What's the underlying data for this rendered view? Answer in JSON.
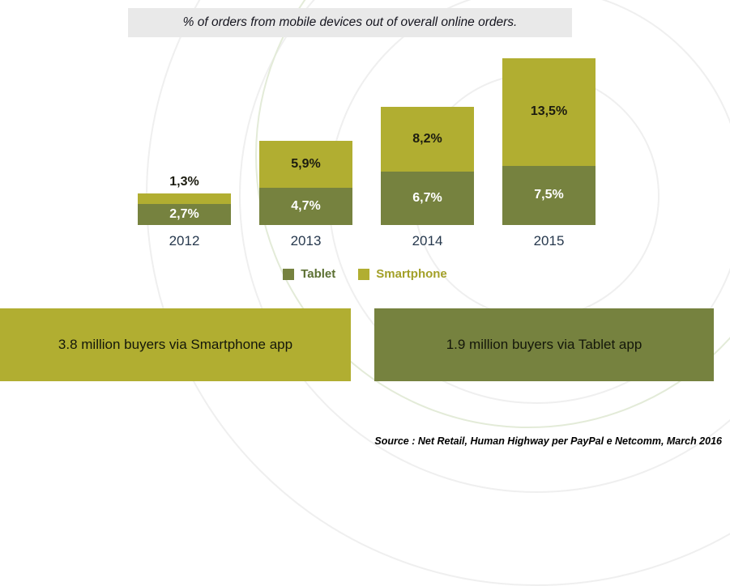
{
  "title": "% of orders from mobile devices out of overall online orders.",
  "chart_data": {
    "type": "bar",
    "stacked": true,
    "categories": [
      "2012",
      "2013",
      "2014",
      "2015"
    ],
    "series": [
      {
        "name": "Tablet",
        "color": "#76823f",
        "values": [
          2.7,
          4.7,
          6.7,
          7.5
        ],
        "labels": [
          "2,7%",
          "4,7%",
          "6,7%",
          "7,5%"
        ]
      },
      {
        "name": "Smartphone",
        "color": "#b1ae31",
        "values": [
          1.3,
          5.9,
          8.2,
          13.5
        ],
        "labels": [
          "1,3%",
          "5,9%",
          "8,2%",
          "13,5%"
        ]
      }
    ],
    "title": "% of orders from mobile devices out of overall online orders.",
    "xlabel": "",
    "ylabel": "",
    "unit": "%",
    "ylim": [
      0,
      14
    ],
    "grid": false,
    "legend_position": "bottom"
  },
  "legend": [
    {
      "label": "Tablet",
      "color": "#76823f",
      "text_color": "#5c7033"
    },
    {
      "label": "Smartphone",
      "color": "#b1ae31",
      "text_color": "#a3a028"
    }
  ],
  "banners": {
    "smartphone": {
      "text": "3.8 million buyers via Smartphone app",
      "color": "#b1ae31"
    },
    "tablet": {
      "text": "1.9 million buyers via Tablet app",
      "color": "#76823f"
    }
  },
  "source": "Source : Net Retail, Human Highway per PayPal e Netcomm, March 2016"
}
